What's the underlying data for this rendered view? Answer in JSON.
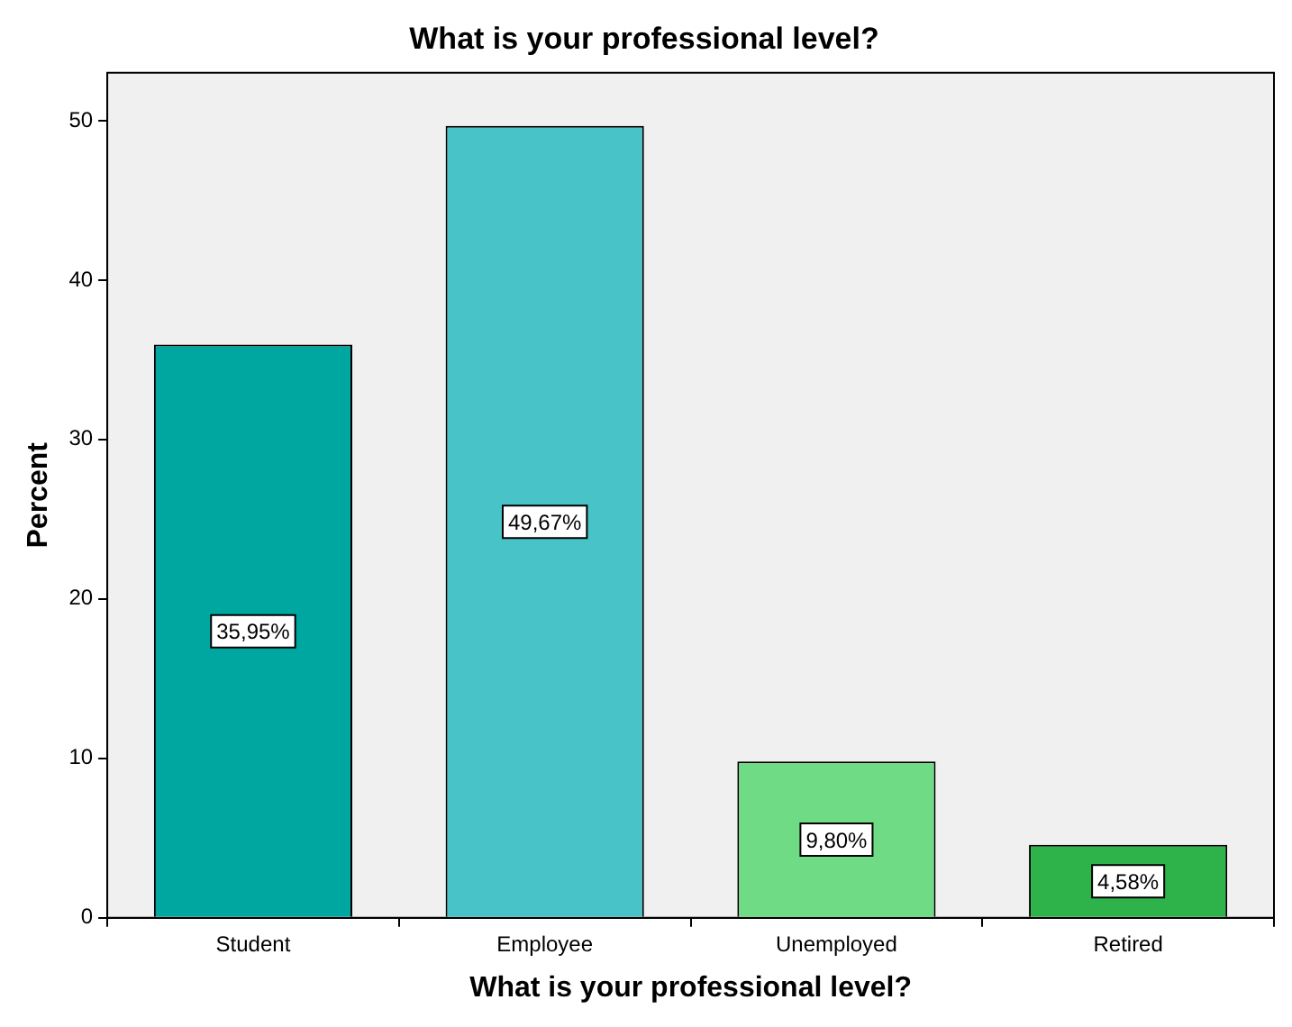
{
  "chart_data": {
    "type": "bar",
    "title": "What is your professional level?",
    "xlabel": "What is your professional level?",
    "ylabel": "Percent",
    "categories": [
      "Student",
      "Employee",
      "Unemployed",
      "Retired"
    ],
    "values": [
      35.95,
      49.67,
      9.8,
      4.58
    ],
    "colors": [
      "#00a6a0",
      "#48c3c8",
      "#6fdc85",
      "#2eb34a"
    ],
    "value_labels": [
      "35,95%",
      "49,67%",
      "9,80%",
      "4,58%"
    ],
    "ylim": [
      0,
      53
    ],
    "yticks": [
      0,
      10,
      20,
      30,
      40,
      50
    ],
    "grid": false,
    "legend": false
  }
}
